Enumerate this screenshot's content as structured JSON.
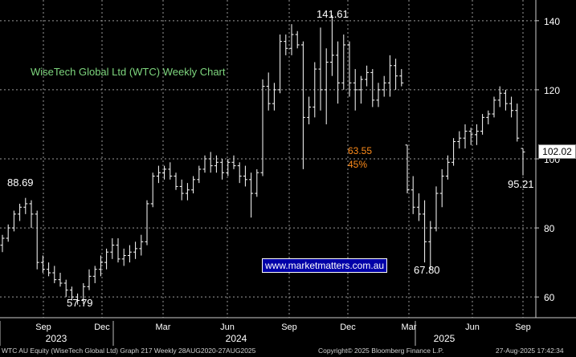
{
  "chart_data": {
    "type": "candlestick",
    "title": "WiseTech Global Ltd (WTC) Weekly Chart",
    "ylim": [
      54,
      146
    ],
    "y_ticks": [
      60,
      80,
      100,
      120,
      140
    ],
    "x_month_ticks": [
      "Sep",
      "Dec",
      "Mar",
      "Jun",
      "Sep",
      "Dec",
      "Mar",
      "Jun",
      "Sep"
    ],
    "x_year_ticks": [
      "2023",
      "2024",
      "2025"
    ],
    "grid": true,
    "annotations": {
      "high_2023": "88.69",
      "low_2023": "57.79",
      "high_2024": "141.61",
      "drop": "63.55",
      "drop_pct": "45%",
      "low_2025": "67.80",
      "last_low": "95.21",
      "last_price": "102.02"
    },
    "series": [
      {
        "values": [
          [
            75,
            78,
            73,
            77
          ],
          [
            77,
            81,
            76,
            80
          ],
          [
            80,
            85,
            79,
            84
          ],
          [
            84,
            87,
            82,
            86
          ],
          [
            86,
            88.69,
            84,
            87
          ],
          [
            87,
            88,
            80,
            84
          ],
          [
            84,
            85,
            68,
            70
          ],
          [
            70,
            72,
            67,
            68
          ],
          [
            68,
            70,
            66,
            67
          ],
          [
            67,
            69,
            64,
            65
          ],
          [
            65,
            67,
            63,
            64
          ],
          [
            64,
            65,
            60,
            62
          ],
          [
            62,
            63,
            59,
            60
          ],
          [
            60,
            61,
            57.79,
            59
          ],
          [
            59,
            64,
            58,
            63
          ],
          [
            63,
            68,
            62,
            66
          ],
          [
            66,
            69,
            64,
            68
          ],
          [
            68,
            72,
            66,
            70
          ],
          [
            70,
            74,
            68,
            73
          ],
          [
            73,
            77,
            71,
            75
          ],
          [
            75,
            77,
            70,
            71
          ],
          [
            71,
            74,
            69,
            72
          ],
          [
            72,
            75,
            70,
            73
          ],
          [
            73,
            76,
            71,
            74
          ],
          [
            74,
            78,
            72,
            76
          ],
          [
            76,
            88,
            75,
            87
          ],
          [
            87,
            96,
            86,
            95
          ],
          [
            95,
            98,
            93,
            96
          ],
          [
            96,
            98,
            94,
            97
          ],
          [
            97,
            99,
            94,
            95
          ],
          [
            95,
            96,
            91,
            92
          ],
          [
            92,
            94,
            88,
            90
          ],
          [
            90,
            93,
            88,
            91
          ],
          [
            91,
            95,
            90,
            94
          ],
          [
            94,
            98,
            93,
            97
          ],
          [
            97,
            101,
            96,
            100
          ],
          [
            100,
            102,
            96,
            98
          ],
          [
            98,
            101,
            96,
            99
          ],
          [
            99,
            100,
            94,
            96
          ],
          [
            96,
            100,
            95,
            99
          ],
          [
            99,
            101,
            97,
            98
          ],
          [
            98,
            99,
            93,
            95
          ],
          [
            95,
            98,
            92,
            94
          ],
          [
            94,
            96,
            83,
            90
          ],
          [
            90,
            97,
            89,
            96
          ],
          [
            96,
            123,
            95,
            121
          ],
          [
            121,
            125,
            114,
            116
          ],
          [
            116,
            122,
            114,
            120
          ],
          [
            120,
            136,
            119,
            134
          ],
          [
            134,
            136,
            130,
            132
          ],
          [
            132,
            139,
            130,
            136
          ],
          [
            136,
            137,
            132,
            133
          ],
          [
            133,
            134,
            97,
            112
          ],
          [
            112,
            118,
            110,
            115
          ],
          [
            115,
            128,
            112,
            126
          ],
          [
            126,
            138,
            114,
            120
          ],
          [
            120,
            132,
            110,
            128
          ],
          [
            128,
            141.61,
            124,
            130
          ],
          [
            130,
            134,
            116,
            122
          ],
          [
            122,
            136,
            120,
            133
          ],
          [
            133,
            134,
            118,
            122
          ],
          [
            122,
            126,
            114,
            120
          ],
          [
            120,
            124,
            116,
            123
          ],
          [
            123,
            127,
            121,
            125
          ],
          [
            125,
            126,
            115,
            117
          ],
          [
            117,
            122,
            115,
            120
          ],
          [
            120,
            124,
            118,
            122
          ],
          [
            122,
            130,
            118,
            127
          ],
          [
            127,
            129,
            120,
            124
          ],
          [
            124,
            126,
            121,
            122
          ],
          [
            104,
            104,
            90,
            91
          ],
          [
            91,
            95,
            84,
            86
          ],
          [
            86,
            90,
            82,
            84
          ],
          [
            84,
            88,
            70,
            76
          ],
          [
            76,
            82,
            68,
            80
          ],
          [
            80,
            92,
            79,
            90
          ],
          [
            90,
            97,
            86,
            95
          ],
          [
            95,
            101,
            94,
            99
          ],
          [
            99,
            106,
            98,
            105
          ],
          [
            105,
            108,
            103,
            106
          ],
          [
            106,
            110,
            103,
            108
          ],
          [
            108,
            109,
            104,
            107
          ],
          [
            107,
            110,
            104,
            108
          ],
          [
            108,
            113,
            107,
            112
          ],
          [
            112,
            114,
            110,
            113
          ],
          [
            113,
            118,
            112,
            117
          ],
          [
            117,
            121,
            115,
            119
          ],
          [
            119,
            120,
            114,
            116
          ],
          [
            116,
            118,
            112,
            114
          ],
          [
            114,
            116,
            105,
            106
          ],
          [
            103,
            103,
            95.21,
            102
          ]
        ]
      }
    ]
  },
  "footer": {
    "left": "WTC AU Equity (WiseTech Global Ltd) Graph 217  Weekly 28AUG2020-27AUG2025",
    "middle": "Copyright© 2025 Bloomberg Finance L.P.",
    "right": "27-Aug-2025 17:42:34"
  },
  "watermark": "www.marketmatters.com.au",
  "colors": {
    "background": "#000000",
    "grid": "#9a9a9a",
    "bars": "#ffffff",
    "title": "#7ed67e",
    "annotation": "#ff8c1a"
  }
}
